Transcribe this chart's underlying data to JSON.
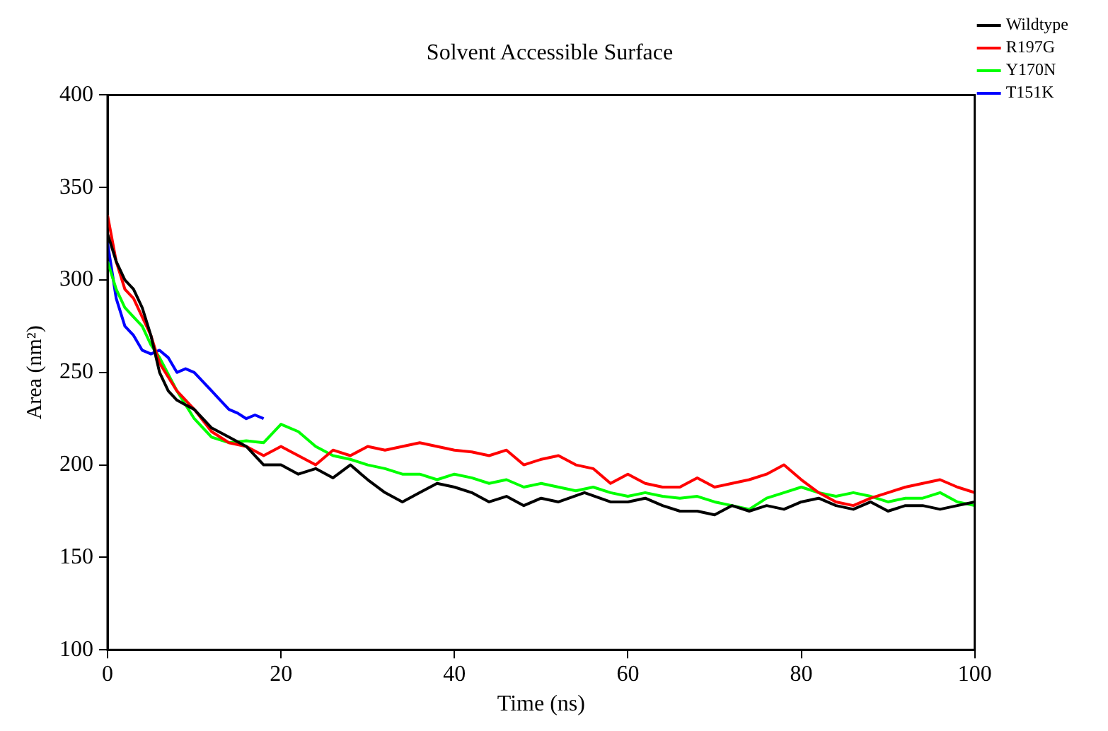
{
  "chart_data": {
    "type": "line",
    "title": "Solvent Accessible Surface",
    "xlabel": "Time (ns)",
    "ylabel": "Area (nm²)",
    "xlim": [
      0,
      100
    ],
    "xticks": [
      0,
      20,
      40,
      60,
      80,
      100
    ],
    "ylim": [
      100,
      400
    ],
    "yticks": [
      100,
      150,
      200,
      250,
      300,
      350,
      400
    ],
    "grid": false,
    "legend": "top right",
    "marker": "none",
    "line_style": "solid",
    "series": [
      {
        "name": "Wildtype",
        "color": "#000000",
        "x": [
          0,
          1,
          2,
          3,
          4,
          5,
          6,
          7,
          8,
          10,
          12,
          14,
          16,
          18,
          20,
          22,
          24,
          26,
          28,
          30,
          32,
          34,
          36,
          38,
          40,
          42,
          44,
          46,
          48,
          50,
          52,
          55,
          58,
          60,
          62,
          64,
          66,
          68,
          70,
          72,
          74,
          76,
          78,
          80,
          82,
          84,
          86,
          88,
          90,
          92,
          94,
          96,
          98,
          100
        ],
        "values": [
          325,
          310,
          300,
          295,
          285,
          270,
          250,
          240,
          235,
          230,
          220,
          215,
          210,
          200,
          200,
          195,
          198,
          193,
          200,
          192,
          185,
          180,
          185,
          190,
          188,
          185,
          180,
          183,
          178,
          182,
          180,
          185,
          180,
          180,
          182,
          178,
          175,
          175,
          173,
          178,
          175,
          178,
          176,
          180,
          182,
          178,
          176,
          180,
          175,
          178,
          178,
          176,
          178,
          180
        ]
      },
      {
        "name": "R197G",
        "color": "#ff0000",
        "x": [
          0,
          1,
          2,
          3,
          4,
          5,
          6,
          8,
          10,
          12,
          14,
          16,
          18,
          20,
          22,
          24,
          26,
          28,
          30,
          32,
          34,
          36,
          38,
          40,
          42,
          44,
          46,
          48,
          50,
          52,
          54,
          56,
          58,
          60,
          62,
          64,
          66,
          68,
          70,
          72,
          74,
          76,
          78,
          80,
          82,
          84,
          86,
          88,
          90,
          92,
          94,
          96,
          98,
          100
        ],
        "values": [
          335,
          310,
          295,
          290,
          280,
          270,
          255,
          240,
          230,
          218,
          212,
          210,
          205,
          210,
          205,
          200,
          208,
          205,
          210,
          208,
          210,
          212,
          210,
          208,
          207,
          205,
          208,
          200,
          203,
          205,
          200,
          198,
          190,
          195,
          190,
          188,
          188,
          193,
          188,
          190,
          192,
          195,
          200,
          192,
          185,
          180,
          178,
          182,
          185,
          188,
          190,
          192,
          188,
          185
        ]
      },
      {
        "name": "Y170N",
        "color": "#00ff00",
        "x": [
          0,
          1,
          2,
          3,
          4,
          5,
          6,
          8,
          10,
          12,
          14,
          16,
          18,
          20,
          22,
          24,
          26,
          28,
          30,
          32,
          34,
          36,
          38,
          40,
          42,
          44,
          46,
          48,
          50,
          52,
          54,
          56,
          58,
          60,
          62,
          64,
          66,
          68,
          70,
          72,
          74,
          76,
          78,
          80,
          82,
          84,
          86,
          88,
          90,
          92,
          94,
          96,
          98,
          100
        ],
        "values": [
          310,
          295,
          285,
          280,
          275,
          265,
          258,
          240,
          225,
          215,
          212,
          213,
          212,
          222,
          218,
          210,
          205,
          203,
          200,
          198,
          195,
          195,
          192,
          195,
          193,
          190,
          192,
          188,
          190,
          188,
          186,
          188,
          185,
          183,
          185,
          183,
          182,
          183,
          180,
          178,
          176,
          182,
          185,
          188,
          185,
          183,
          185,
          183,
          180,
          182,
          182,
          185,
          180,
          178
        ]
      },
      {
        "name": "T151K",
        "color": "#0000ff",
        "x": [
          0,
          1,
          2,
          3,
          4,
          5,
          6,
          7,
          8,
          9,
          10,
          11,
          12,
          13,
          14,
          15,
          16,
          17,
          18
        ],
        "values": [
          320,
          290,
          275,
          270,
          262,
          260,
          262,
          258,
          250,
          252,
          250,
          245,
          240,
          235,
          230,
          228,
          225,
          227,
          225
        ]
      }
    ]
  }
}
